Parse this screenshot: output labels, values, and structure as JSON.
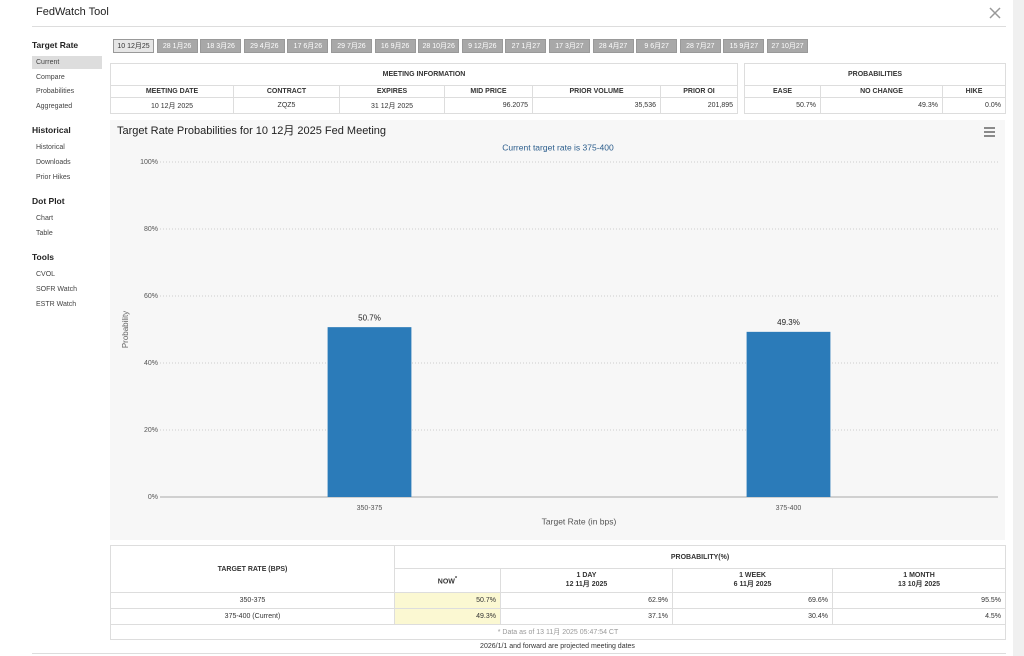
{
  "header": {
    "title": "FedWatch Tool"
  },
  "sidebar": {
    "sections": [
      {
        "title": "Target Rate",
        "items": [
          "Current",
          "Compare",
          "Probabilities",
          "Aggregated"
        ]
      },
      {
        "title": "Historical",
        "items": [
          "Historical",
          "Downloads",
          "Prior Hikes"
        ]
      },
      {
        "title": "Dot Plot",
        "items": [
          "Chart",
          "Table"
        ]
      },
      {
        "title": "Tools",
        "items": [
          "CVOL",
          "SOFR Watch",
          "ESTR Watch"
        ]
      }
    ]
  },
  "tabs": [
    "10 12月25",
    "28 1月26",
    "18 3月26",
    "29 4月26",
    "17 6月26",
    "29 7月26",
    "16 9月26",
    "28 10月26",
    "9 12月26",
    "27 1月27",
    "17 3月27",
    "28 4月27",
    "9 6月27",
    "28 7月27",
    "15 9月27",
    "27 10月27"
  ],
  "meeting_info": {
    "title": "MEETING INFORMATION",
    "columns": [
      "MEETING DATE",
      "CONTRACT",
      "EXPIRES",
      "MID PRICE",
      "PRIOR VOLUME",
      "PRIOR OI"
    ],
    "row": [
      "10 12月 2025",
      "ZQZ5",
      "31 12月 2025",
      "96.2075",
      "35,536",
      "201,895"
    ]
  },
  "probabilities": {
    "title": "PROBABILITIES",
    "columns": [
      "EASE",
      "NO CHANGE",
      "HIKE"
    ],
    "row": [
      "50.7%",
      "49.3%",
      "0.0%"
    ]
  },
  "chart_data": {
    "type": "bar",
    "title": "Target Rate Probabilities for 10 12月 2025 Fed Meeting",
    "subtitle": "Current target rate is 375-400",
    "x_label": "Target Rate (in bps)",
    "y_label": "Probability",
    "categories": [
      "350-375",
      "375-400"
    ],
    "values": [
      50.7,
      49.3
    ],
    "value_labels": [
      "50.7%",
      "49.3%"
    ],
    "color": "#2b7bb9",
    "ylim": [
      0,
      100
    ],
    "yticks": [
      {
        "value": 0,
        "label": "0%"
      },
      {
        "value": 20,
        "label": "20%"
      },
      {
        "value": 40,
        "label": "40%"
      },
      {
        "value": 60,
        "label": "60%"
      },
      {
        "value": 80,
        "label": "80%"
      },
      {
        "value": 100,
        "label": "100%"
      }
    ],
    "grid": true
  },
  "probability_table": {
    "row_header": "TARGET RATE (BPS)",
    "title": "PROBABILITY(%)",
    "columns": [
      {
        "label": "NOW",
        "marker": "*"
      },
      {
        "label": "1 DAY",
        "date": "12 11月 2025"
      },
      {
        "label": "1 WEEK",
        "date": "6 11月 2025"
      },
      {
        "label": "1 MONTH",
        "date": "13 10月 2025"
      }
    ],
    "rows": [
      [
        "350-375",
        "50.7%",
        "62.9%",
        "69.6%",
        "95.5%"
      ],
      [
        "375-400 (Current)",
        "49.3%",
        "37.1%",
        "30.4%",
        "4.5%"
      ]
    ],
    "footnote": "* Data as of 13 11月 2025 05:47:54 CT"
  },
  "projection_note": "2026/1/1 and forward are projected meeting dates"
}
